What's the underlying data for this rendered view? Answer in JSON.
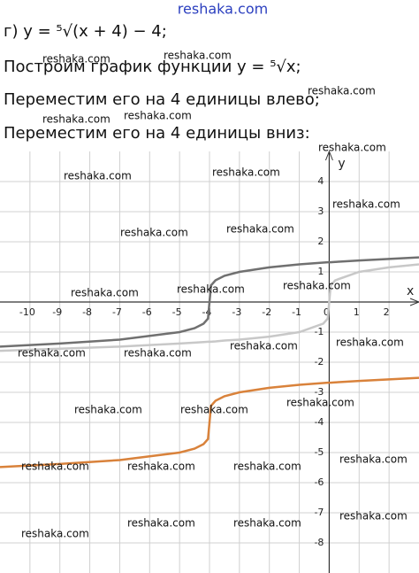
{
  "watermark": "reshaka.com",
  "lines": [
    "г) y = ⁵√(x + 4) − 4;",
    "Построим график функции y = ⁵√x;",
    "Переместим его на 4 единицы влево;",
    "Переместим его на 4 единицы вниз:"
  ],
  "chart_data": {
    "type": "line",
    "x_label": "x",
    "y_label": "y",
    "x": [
      -11,
      -9,
      -7,
      -5,
      -4.5,
      -4.2,
      -4.05,
      -4,
      -3.95,
      -3.8,
      -3.5,
      -3,
      -2,
      -1,
      -0.2,
      -0.05,
      0,
      0.05,
      0.2,
      1,
      2,
      3
    ],
    "series": [
      {
        "color": "#c8c8c8",
        "values": [
          -1.62,
          -1.55,
          -1.48,
          -1.38,
          -1.35,
          -1.33,
          -1.32,
          -1.32,
          -1.32,
          -1.31,
          -1.28,
          -1.25,
          -1.15,
          -1,
          -0.72,
          -0.55,
          0,
          0.55,
          0.72,
          1,
          1.15,
          1.25
        ]
      },
      {
        "color": "#707070",
        "values": [
          -1.48,
          -1.38,
          -1.25,
          -1,
          -0.87,
          -0.72,
          -0.55,
          0,
          0.55,
          0.72,
          0.87,
          1,
          1.15,
          1.25,
          1.31,
          1.32,
          1.32,
          1.32,
          1.33,
          1.38,
          1.43,
          1.48
        ]
      },
      {
        "color": "#d9823b",
        "values": [
          -5.48,
          -5.38,
          -5.25,
          -5,
          -4.87,
          -4.72,
          -4.55,
          -4,
          -3.45,
          -3.28,
          -3.13,
          -3,
          -2.85,
          -2.75,
          -2.69,
          -2.68,
          -2.68,
          -2.68,
          -2.67,
          -2.62,
          -2.57,
          -2.52
        ]
      }
    ],
    "xlim": [
      -11,
      3
    ],
    "ylim": [
      -9,
      5
    ],
    "xticks": [
      -10,
      -9,
      -8,
      -7,
      -6,
      -5,
      -4,
      -3,
      -2,
      -1,
      0,
      1,
      2
    ],
    "yticks": [
      -8,
      -7,
      -6,
      -5,
      -4,
      -3,
      -2,
      -1,
      1,
      2,
      3,
      4
    ],
    "grid": true
  }
}
